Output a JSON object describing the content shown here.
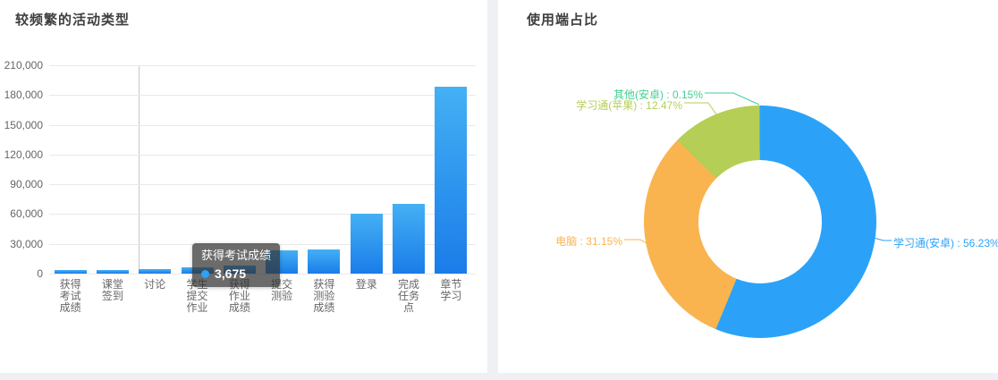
{
  "left_panel": {
    "title": "较频繁的活动类型"
  },
  "right_panel": {
    "title": "使用端占比"
  },
  "tooltip": {
    "title": "获得考试成绩",
    "value": "3,675",
    "marker_color": "#2ba2f8"
  },
  "chart_data": [
    {
      "type": "bar",
      "title": "较频繁的活动类型",
      "categories": [
        "获得考试成绩",
        "课堂签到",
        "讨论",
        "学生提交作业",
        "获得作业成绩",
        "提交测验",
        "获得测验成绩",
        "登录",
        "完成任务点",
        "章节学习"
      ],
      "values": [
        3675,
        3400,
        4200,
        6000,
        8100,
        23400,
        24300,
        60500,
        70000,
        188000
      ],
      "ylim": [
        0,
        210000
      ],
      "ytick_labels": [
        "210,000",
        "180,000",
        "150,000",
        "120,000",
        "90,000",
        "60,000",
        "30,000",
        "0"
      ],
      "ylabel": "",
      "xlabel": "",
      "grid": "on",
      "bar_gradient_top": "#44b0f4",
      "bar_gradient_bottom": "#1a7ce9"
    },
    {
      "type": "pie",
      "title": "使用端占比",
      "donut": true,
      "labels": [
        "学习通(安卓)",
        "电脑",
        "学习通(苹果)",
        "其他(安卓)"
      ],
      "values": [
        56.23,
        31.15,
        12.47,
        0.15
      ],
      "label_texts": [
        "学习通(安卓) : 56.23%",
        "电脑 : 31.15%",
        "学习通(苹果) : 12.47%",
        "其他(安卓) : 0.15%"
      ],
      "colors": [
        "#2ba2f8",
        "#f9b450",
        "#b5ce55",
        "#44ce92"
      ],
      "legend_position": "labels-with-leader-lines"
    }
  ]
}
